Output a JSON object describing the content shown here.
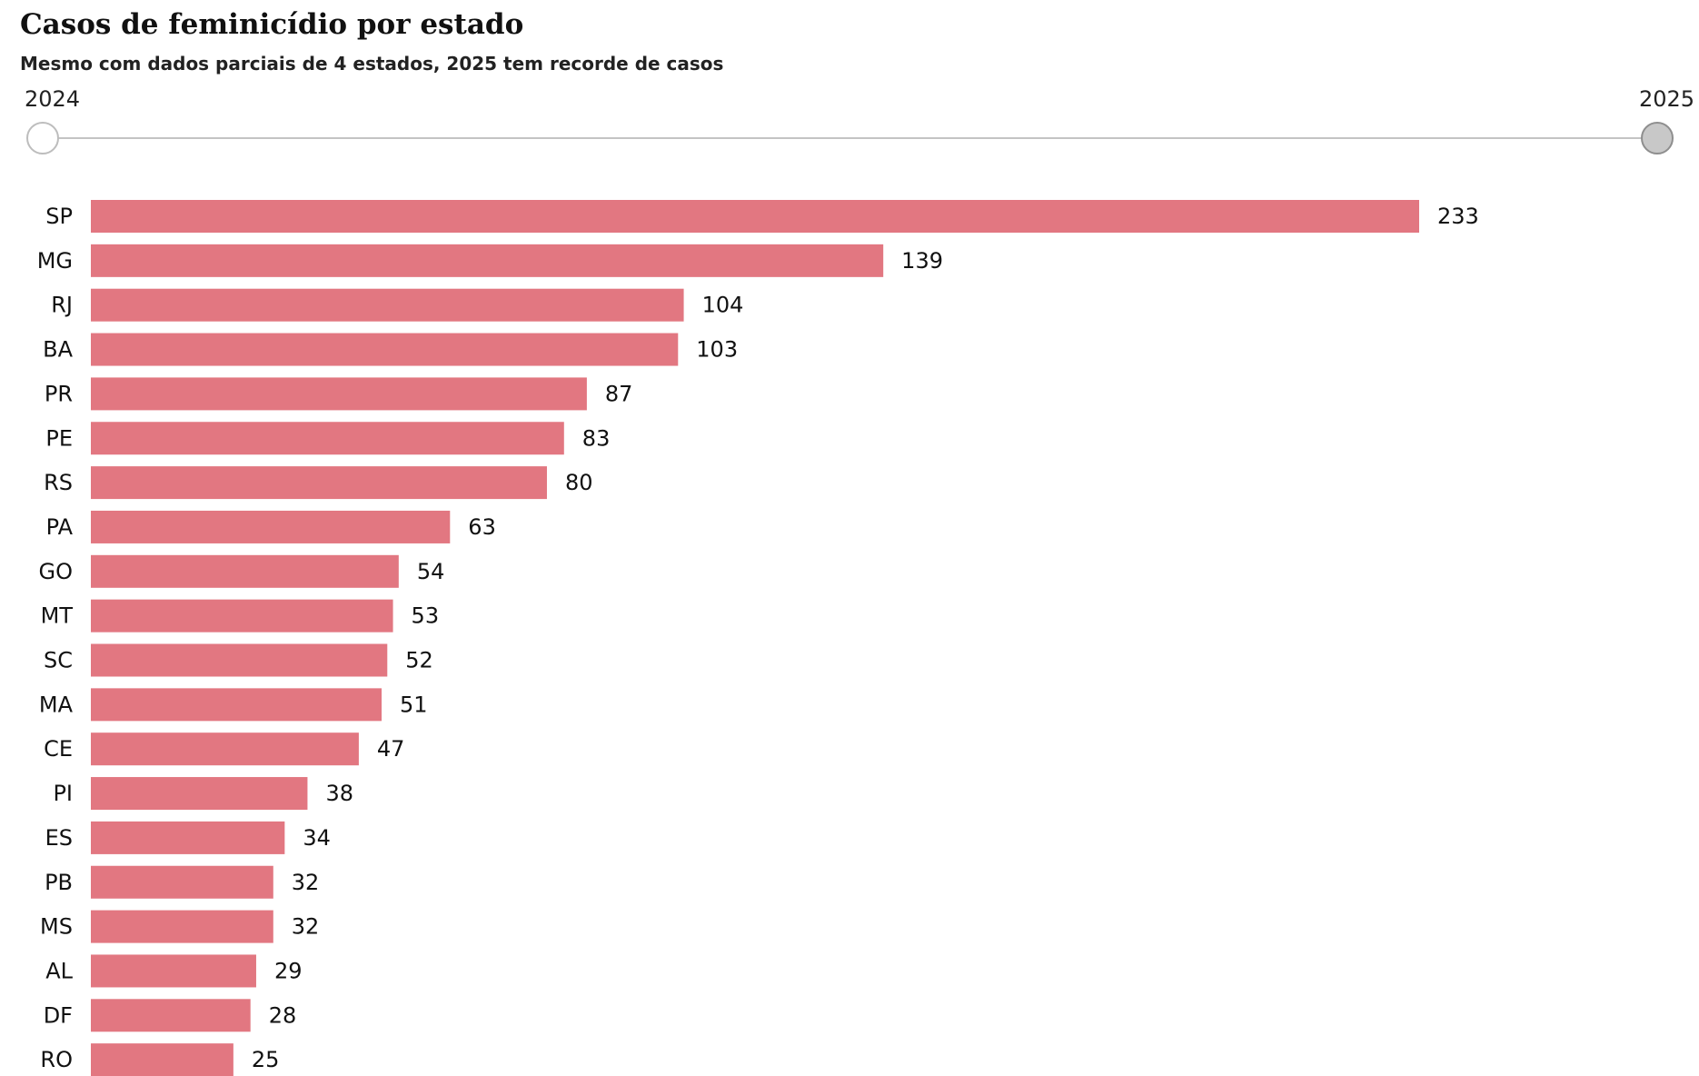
{
  "header": {
    "title": "Casos de feminicídio por estado",
    "subtitle": "Mesmo com dados parciais de 4 estados, 2025 tem recorde de casos"
  },
  "year_slider": {
    "start_label": "2024",
    "end_label": "2025",
    "selected": "2025"
  },
  "colors": {
    "bar": "#e27781"
  },
  "chart_data": {
    "type": "bar",
    "orientation": "horizontal",
    "title": "Casos de feminicídio por estado",
    "subtitle": "Mesmo com dados parciais de 4 estados, 2025 tem recorde de casos",
    "year": "2025",
    "xlabel": "",
    "ylabel": "",
    "xlim": [
      0,
      233
    ],
    "grid": false,
    "categories": [
      "SP",
      "MG",
      "RJ",
      "BA",
      "PR",
      "PE",
      "RS",
      "PA",
      "GO",
      "MT",
      "SC",
      "MA",
      "CE",
      "PI",
      "ES",
      "PB",
      "MS",
      "AL",
      "DF",
      "RO"
    ],
    "values": [
      233,
      139,
      104,
      103,
      87,
      83,
      80,
      63,
      54,
      53,
      52,
      51,
      47,
      38,
      34,
      32,
      32,
      29,
      28,
      25
    ]
  }
}
